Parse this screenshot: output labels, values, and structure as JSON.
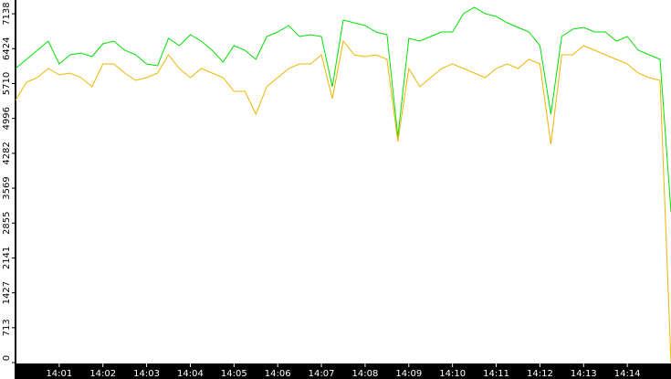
{
  "chart_data": {
    "type": "line",
    "x": [
      840,
      840.25,
      840.5,
      840.75,
      841,
      841.25,
      841.5,
      841.75,
      842,
      842.25,
      842.5,
      842.75,
      843,
      843.25,
      843.5,
      843.75,
      844,
      844.25,
      844.5,
      844.75,
      845,
      845.25,
      845.5,
      845.75,
      846,
      846.25,
      846.5,
      846.75,
      847,
      847.25,
      847.5,
      847.75,
      848,
      848.25,
      848.5,
      848.75,
      849,
      849.25,
      849.5,
      849.75,
      850,
      850.25,
      850.5,
      850.75,
      851,
      851.25,
      851.5,
      851.75,
      852,
      852.25,
      852.5,
      852.75,
      853,
      853.25,
      853.5,
      853.75,
      854,
      854.25,
      854.5,
      854.75,
      855
    ],
    "series": [
      {
        "color": "#00e000",
        "values": [
          6018,
          6205,
          6392,
          6579,
          6112,
          6299,
          6336,
          6261,
          6523,
          6579,
          6392,
          6299,
          6112,
          6074,
          6635,
          6485,
          6710,
          6579,
          6392,
          6149,
          6485,
          6392,
          6205,
          6672,
          6766,
          6897,
          6672,
          6710,
          6672,
          5644,
          7009,
          6953,
          6897,
          6766,
          6710,
          4616,
          6635,
          6579,
          6672,
          6766,
          6766,
          7140,
          7270,
          7140,
          7084,
          6953,
          6859,
          6766,
          6485,
          5084,
          6672,
          6822,
          6859,
          6766,
          6766,
          6579,
          6672,
          6392,
          6299,
          6205,
          3084
        ]
      },
      {
        "color": "#f0b400",
        "values": [
          5364,
          5738,
          5831,
          6018,
          5887,
          5925,
          5831,
          5644,
          6112,
          6112,
          5925,
          5775,
          5831,
          5925,
          6299,
          6018,
          5831,
          6018,
          5925,
          5831,
          5551,
          5551,
          5084,
          5644,
          5831,
          6018,
          6112,
          6112,
          6299,
          5401,
          6579,
          6299,
          6261,
          6299,
          6205,
          4523,
          6018,
          5644,
          5831,
          6018,
          6112,
          6018,
          5925,
          5831,
          6018,
          6112,
          6018,
          6205,
          6112,
          4467,
          6299,
          6299,
          6485,
          6392,
          6299,
          6205,
          6112,
          5925,
          5831,
          5775,
          0
        ]
      }
    ],
    "xlim": [
      840,
      855
    ],
    "xticks": [
      {
        "value": 841,
        "label": "14:01"
      },
      {
        "value": 842,
        "label": "14:02"
      },
      {
        "value": 843,
        "label": "14:03"
      },
      {
        "value": 844,
        "label": "14:04"
      },
      {
        "value": 845,
        "label": "14:05"
      },
      {
        "value": 846,
        "label": "14:06"
      },
      {
        "value": 847,
        "label": "14:07"
      },
      {
        "value": 848,
        "label": "14:08"
      },
      {
        "value": 849,
        "label": "14:09"
      },
      {
        "value": 850,
        "label": "14:10"
      },
      {
        "value": 851,
        "label": "14:11"
      },
      {
        "value": 852,
        "label": "14:12"
      },
      {
        "value": 853,
        "label": "14:13"
      },
      {
        "value": 854,
        "label": "14:14"
      }
    ],
    "ylim": [
      0,
      7420
    ],
    "yticks": [
      0,
      713,
      1427,
      2141,
      2855,
      3569,
      4282,
      4996,
      5710,
      6424,
      7138
    ]
  }
}
